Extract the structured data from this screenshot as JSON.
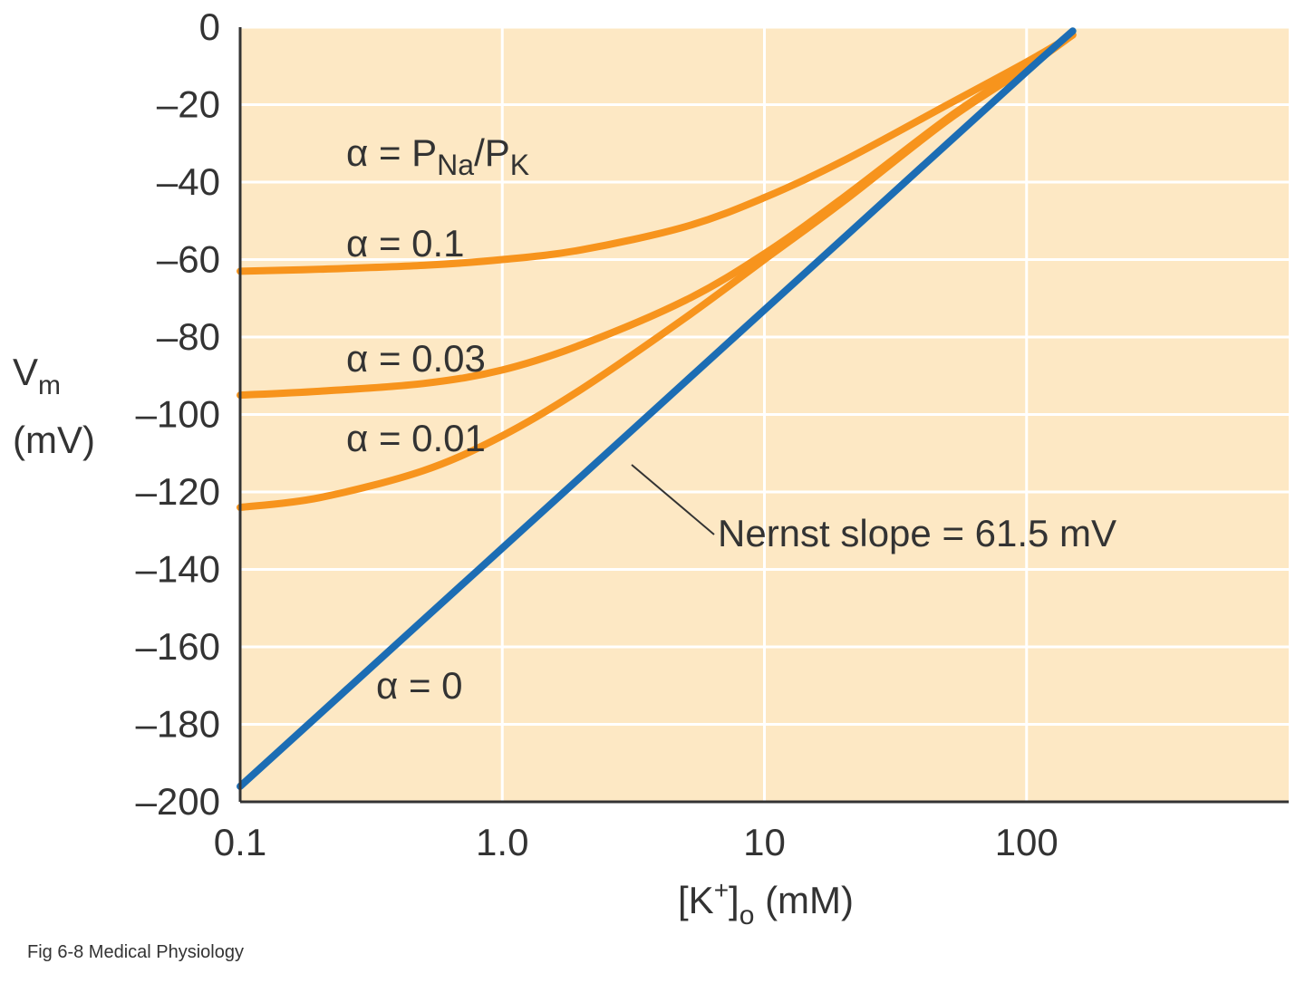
{
  "caption": "Fig 6-8 Medical Physiology",
  "chart_data": {
    "type": "line",
    "title": "",
    "xlabel": {
      "prefix": "[K",
      "sup": "+",
      "mid": "]",
      "sub": "o",
      "suffix": " (mM)"
    },
    "ylabel": {
      "main": "V",
      "sub": "m",
      "unit": "(mV)"
    },
    "xscale": "log",
    "xlim": [
      0.1,
      1000
    ],
    "ylim": [
      -200,
      0
    ],
    "grid": true,
    "x_ticks": [
      0.1,
      1,
      10,
      100
    ],
    "x_tick_labels": [
      "0.1",
      "1.0",
      "10",
      "100"
    ],
    "y_ticks": [
      0,
      -20,
      -40,
      -60,
      -80,
      -100,
      -120,
      -140,
      -160,
      -180,
      -200
    ],
    "y_tick_labels": [
      "0",
      "–20",
      "–40",
      "–60",
      "–80",
      "–100",
      "–120",
      "–140",
      "–160",
      "–180",
      "–200"
    ],
    "x": [
      0.1,
      0.2,
      0.5,
      1,
      2,
      5,
      10,
      20,
      50,
      100,
      150
    ],
    "series": [
      {
        "name": "α = 0.1",
        "color": "#f7941d",
        "values": [
          -63,
          -62.5,
          -61.5,
          -60,
          -57.5,
          -51.5,
          -44,
          -34.5,
          -20,
          -9,
          -2
        ]
      },
      {
        "name": "α = 0.03",
        "color": "#f7941d",
        "values": [
          -95,
          -94,
          -92,
          -88.5,
          -82,
          -70.5,
          -58.5,
          -44,
          -23.5,
          -10,
          -2
        ]
      },
      {
        "name": "α = 0.01",
        "color": "#f7941d",
        "values": [
          -124,
          -121.5,
          -114.5,
          -105.5,
          -93.5,
          -75,
          -60,
          -45,
          -24,
          -10.5,
          -2
        ]
      },
      {
        "name": "α = 0",
        "color": "#1c6db4",
        "values": [
          -196,
          -177.5,
          -153,
          -134.5,
          -116,
          -91.5,
          -73,
          -54.5,
          -30,
          -11.5,
          -1
        ]
      }
    ],
    "annotations": {
      "definition": {
        "alpha": "α = P",
        "sub1": "Na",
        "slash": "/P",
        "sub2": "K"
      },
      "nernst": "Nernst slope = 61.5 mV"
    },
    "colors": {
      "plot_bg": "#fde8c4",
      "grid": "#ffffff",
      "orange": "#f7941d",
      "blue": "#1c6db4",
      "axis": "#333333"
    }
  }
}
